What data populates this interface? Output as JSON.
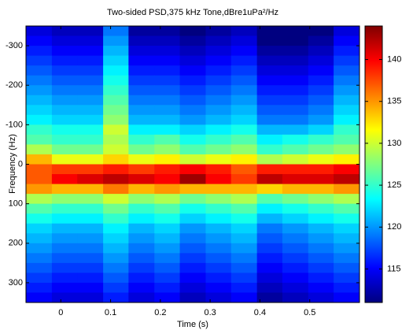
{
  "chart_data": {
    "type": "heatmap",
    "title": "Two-sided PSD,375 kHz Tone,dBre1uPa²/Hz",
    "xlabel": "Time (s)",
    "ylabel": "Frequency (Hz)",
    "x_bins": [
      -0.07,
      -0.018,
      0.033,
      0.085,
      0.136,
      0.188,
      0.239,
      0.291,
      0.342,
      0.394,
      0.445,
      0.497,
      0.548,
      0.6
    ],
    "y_bins": [
      -350,
      -325,
      -300,
      -275,
      -250,
      -225,
      -200,
      -175,
      -150,
      -125,
      -100,
      -75,
      -50,
      -25,
      0,
      25,
      50,
      75,
      100,
      125,
      150,
      175,
      200,
      225,
      250,
      275,
      300,
      325,
      350
    ],
    "xlim": [
      -0.07,
      0.6
    ],
    "ylim": [
      -350,
      350
    ],
    "xticks": [
      0,
      0.1,
      0.2,
      0.3,
      0.4,
      0.5
    ],
    "yticks": [
      -300,
      -200,
      -100,
      0,
      100,
      200,
      300
    ],
    "clim": [
      111,
      144
    ],
    "cticks": [
      115,
      120,
      125,
      130,
      135,
      140
    ],
    "colormap": "jet",
    "values": [
      [
        114,
        113,
        113,
        119,
        112,
        112,
        111,
        112,
        113,
        110,
        110,
        111,
        114
      ],
      [
        115,
        114,
        114,
        120,
        113,
        113,
        112,
        113,
        114,
        111,
        111,
        112,
        115
      ],
      [
        116,
        115,
        115,
        121,
        114,
        114,
        113,
        114,
        115,
        112,
        112,
        113,
        116
      ],
      [
        117,
        116,
        116,
        122,
        115,
        115,
        114,
        115,
        116,
        113,
        113,
        114,
        117
      ],
      [
        118,
        117,
        117,
        123,
        116,
        116,
        115,
        116,
        117,
        114,
        114,
        115,
        118
      ],
      [
        119,
        118,
        118,
        124,
        117,
        117,
        116,
        117,
        118,
        115,
        115,
        116,
        119
      ],
      [
        120,
        119,
        119,
        125,
        118,
        118,
        117,
        118,
        119,
        116,
        116,
        117,
        120
      ],
      [
        121,
        120,
        120,
        126,
        119,
        119,
        118,
        119,
        120,
        117,
        117,
        118,
        121
      ],
      [
        122,
        121,
        121,
        127,
        120,
        120,
        119,
        120,
        121,
        118,
        118,
        119,
        122
      ],
      [
        123,
        122,
        122,
        128,
        121,
        121,
        120,
        121,
        122,
        119,
        119,
        120,
        123
      ],
      [
        125,
        124,
        124,
        130,
        123,
        123,
        122,
        123,
        124,
        121,
        121,
        122,
        125
      ],
      [
        126,
        125,
        125,
        129,
        125,
        126,
        124,
        125,
        126,
        123,
        124,
        125,
        126
      ],
      [
        129,
        127,
        127,
        130,
        127,
        128,
        126,
        127,
        128,
        125,
        126,
        127,
        128
      ],
      [
        134,
        131,
        131,
        133,
        131,
        132,
        130,
        131,
        132,
        129,
        130,
        131,
        132
      ],
      [
        137,
        138,
        138,
        139,
        138,
        139,
        140,
        139,
        137,
        139,
        139,
        139,
        140
      ],
      [
        137,
        140,
        141,
        142,
        141,
        140,
        143,
        140,
        138,
        142,
        141,
        141,
        142
      ],
      [
        135,
        134,
        134,
        136,
        134,
        135,
        134,
        134,
        134,
        133,
        134,
        134,
        135
      ],
      [
        129,
        128,
        128,
        130,
        128,
        129,
        127,
        128,
        129,
        126,
        127,
        128,
        129
      ],
      [
        126,
        125,
        125,
        127,
        125,
        126,
        124,
        125,
        126,
        123,
        124,
        125,
        126
      ],
      [
        124,
        123,
        123,
        125,
        123,
        124,
        122,
        123,
        124,
        121,
        122,
        123,
        124
      ],
      [
        122,
        121,
        121,
        123,
        121,
        122,
        120,
        121,
        122,
        119,
        120,
        121,
        122
      ],
      [
        121,
        120,
        120,
        122,
        120,
        121,
        119,
        120,
        121,
        118,
        119,
        120,
        121
      ],
      [
        120,
        119,
        119,
        121,
        119,
        120,
        118,
        119,
        120,
        117,
        118,
        119,
        120
      ],
      [
        119,
        118,
        118,
        120,
        118,
        119,
        117,
        118,
        119,
        116,
        117,
        118,
        119
      ],
      [
        118,
        117,
        117,
        119,
        117,
        118,
        116,
        117,
        118,
        115,
        116,
        117,
        118
      ],
      [
        117,
        116,
        116,
        118,
        116,
        117,
        115,
        116,
        117,
        114,
        115,
        116,
        117
      ],
      [
        116,
        115,
        115,
        117,
        115,
        116,
        114,
        115,
        116,
        113,
        114,
        115,
        116
      ],
      [
        115,
        114,
        114,
        116,
        114,
        115,
        113,
        114,
        115,
        112,
        113,
        114,
        115
      ]
    ]
  }
}
